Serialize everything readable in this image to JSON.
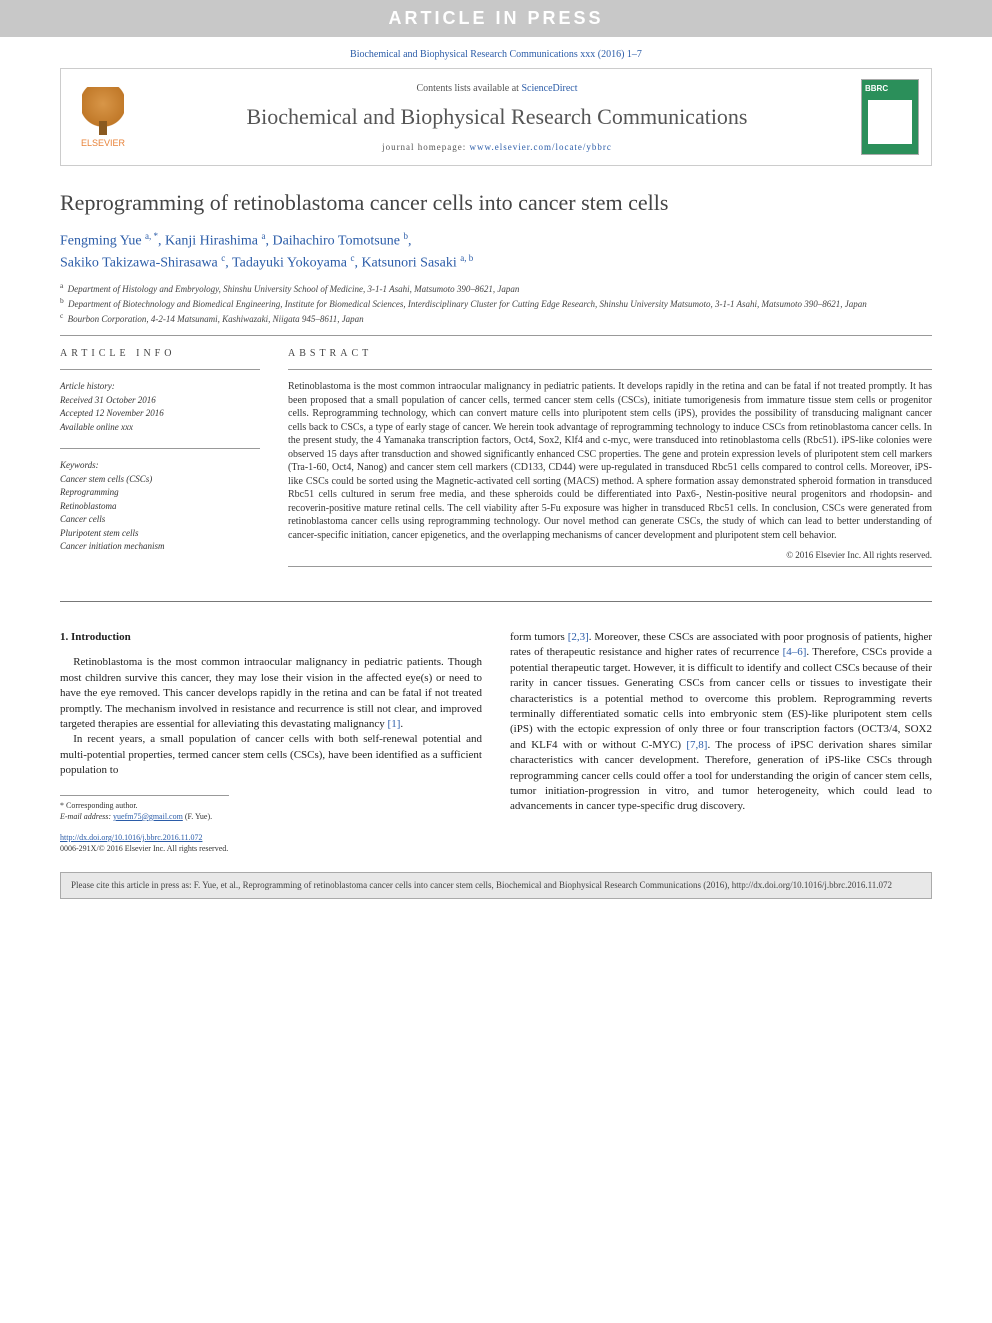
{
  "banner": "ARTICLE IN PRESS",
  "citation_top": "Biochemical and Biophysical Research Communications xxx (2016) 1–7",
  "header": {
    "publisher": "ELSEVIER",
    "contents_label": "Contents lists available at ",
    "contents_link": "ScienceDirect",
    "journal_title": "Biochemical and Biophysical Research Communications",
    "homepage_label": "journal homepage: ",
    "homepage_url": "www.elsevier.com/locate/ybbrc"
  },
  "article": {
    "title": "Reprogramming of retinoblastoma cancer cells into cancer stem cells",
    "authors": [
      {
        "name": "Fengming Yue",
        "marks": "a, *"
      },
      {
        "name": "Kanji Hirashima",
        "marks": "a"
      },
      {
        "name": "Daihachiro Tomotsune",
        "marks": "b"
      },
      {
        "name": "Sakiko Takizawa-Shirasawa",
        "marks": "c"
      },
      {
        "name": "Tadayuki Yokoyama",
        "marks": "c"
      },
      {
        "name": "Katsunori Sasaki",
        "marks": "a, b"
      }
    ],
    "affiliations": [
      {
        "mark": "a",
        "text": "Department of Histology and Embryology, Shinshu University School of Medicine, 3-1-1 Asahi, Matsumoto 390–8621, Japan"
      },
      {
        "mark": "b",
        "text": "Department of Biotechnology and Biomedical Engineering, Institute for Biomedical Sciences, Interdisciplinary Cluster for Cutting Edge Research, Shinshu University Matsumoto, 3-1-1 Asahi, Matsumoto 390–8621, Japan"
      },
      {
        "mark": "c",
        "text": "Bourbon Corporation, 4-2-14 Matsunami, Kashiwazaki, Niigata 945–8611, Japan"
      }
    ]
  },
  "article_info": {
    "heading": "ARTICLE INFO",
    "history_label": "Article history:",
    "history": [
      "Received 31 October 2016",
      "Accepted 12 November 2016",
      "Available online xxx"
    ],
    "keywords_label": "Keywords:",
    "keywords": [
      "Cancer stem cells (CSCs)",
      "Reprogramming",
      "Retinoblastoma",
      "Cancer cells",
      "Pluripotent stem cells",
      "Cancer initiation mechanism"
    ]
  },
  "abstract": {
    "heading": "ABSTRACT",
    "text": "Retinoblastoma is the most common intraocular malignancy in pediatric patients. It develops rapidly in the retina and can be fatal if not treated promptly. It has been proposed that a small population of cancer cells, termed cancer stem cells (CSCs), initiate tumorigenesis from immature tissue stem cells or progenitor cells. Reprogramming technology, which can convert mature cells into pluripotent stem cells (iPS), provides the possibility of transducing malignant cancer cells back to CSCs, a type of early stage of cancer. We herein took advantage of reprogramming technology to induce CSCs from retinoblastoma cancer cells. In the present study, the 4 Yamanaka transcription factors, Oct4, Sox2, Klf4 and c-myc, were transduced into retinoblastoma cells (Rbc51). iPS-like colonies were observed 15 days after transduction and showed significantly enhanced CSC properties. The gene and protein expression levels of pluripotent stem cell markers (Tra-1-60, Oct4, Nanog) and cancer stem cell markers (CD133, CD44) were up-regulated in transduced Rbc51 cells compared to control cells. Moreover, iPS-like CSCs could be sorted using the Magnetic-activated cell sorting (MACS) method. A sphere formation assay demonstrated spheroid formation in transduced Rbc51 cells cultured in serum free media, and these spheroids could be differentiated into Pax6-, Nestin-positive neural progenitors and rhodopsin- and recoverin-positive mature retinal cells. The cell viability after 5-Fu exposure was higher in transduced Rbc51 cells. In conclusion, CSCs were generated from retinoblastoma cancer cells using reprogramming technology. Our novel method can generate CSCs, the study of which can lead to better understanding of cancer-specific initiation, cancer epigenetics, and the overlapping mechanisms of cancer development and pluripotent stem cell behavior.",
    "copyright": "© 2016 Elsevier Inc. All rights reserved."
  },
  "body": {
    "section_heading": "1. Introduction",
    "left": [
      "Retinoblastoma is the most common intraocular malignancy in pediatric patients. Though most children survive this cancer, they may lose their vision in the affected eye(s) or need to have the eye removed. This cancer develops rapidly in the retina and can be fatal if not treated promptly. The mechanism involved in resistance and recurrence is still not clear, and improved targeted therapies are essential for alleviating this devastating malignancy [1].",
      "In recent years, a small population of cancer cells with both self-renewal potential and multi-potential properties, termed cancer stem cells (CSCs), have been identified as a sufficient population to"
    ],
    "right": [
      "form tumors [2,3]. Moreover, these CSCs are associated with poor prognosis of patients, higher rates of therapeutic resistance and higher rates of recurrence [4–6]. Therefore, CSCs provide a potential therapeutic target. However, it is difficult to identify and collect CSCs because of their rarity in cancer tissues. Generating CSCs from cancer cells or tissues to investigate their characteristics is a potential method to overcome this problem. Reprogramming reverts terminally differentiated somatic cells into embryonic stem (ES)-like pluripotent stem cells (iPS) with the ectopic expression of only three or four transcription factors (OCT3/4, SOX2 and KLF4 with or without C-MYC) [7,8]. The process of iPSC derivation shares similar characteristics with cancer development. Therefore, generation of iPS-like CSCs through reprogramming cancer cells could offer a tool for understanding the origin of cancer stem cells, tumor initiation-progression in vitro, and tumor heterogeneity, which could lead to advancements in cancer type-specific drug discovery."
    ],
    "refs": {
      "r1": "[1]",
      "r23": "[2,3]",
      "r46": "[4–6]",
      "r78": "[7,8]"
    }
  },
  "footnote": {
    "corresponding": "* Corresponding author.",
    "email_label": "E-mail address: ",
    "email": "yuefm75@gmail.com",
    "email_paren": " (F. Yue).",
    "doi": "http://dx.doi.org/10.1016/j.bbrc.2016.11.072",
    "issn": "0006-291X/© 2016 Elsevier Inc. All rights reserved."
  },
  "cite_box": "Please cite this article in press as: F. Yue, et al., Reprogramming of retinoblastoma cancer cells into cancer stem cells, Biochemical and Biophysical Research Communications (2016), http://dx.doi.org/10.1016/j.bbrc.2016.11.072",
  "colors": {
    "banner_bg": "#c8c8c8",
    "link": "#2b5ca8",
    "cover_bg": "#2b8f5a",
    "publisher": "#e8833a"
  }
}
